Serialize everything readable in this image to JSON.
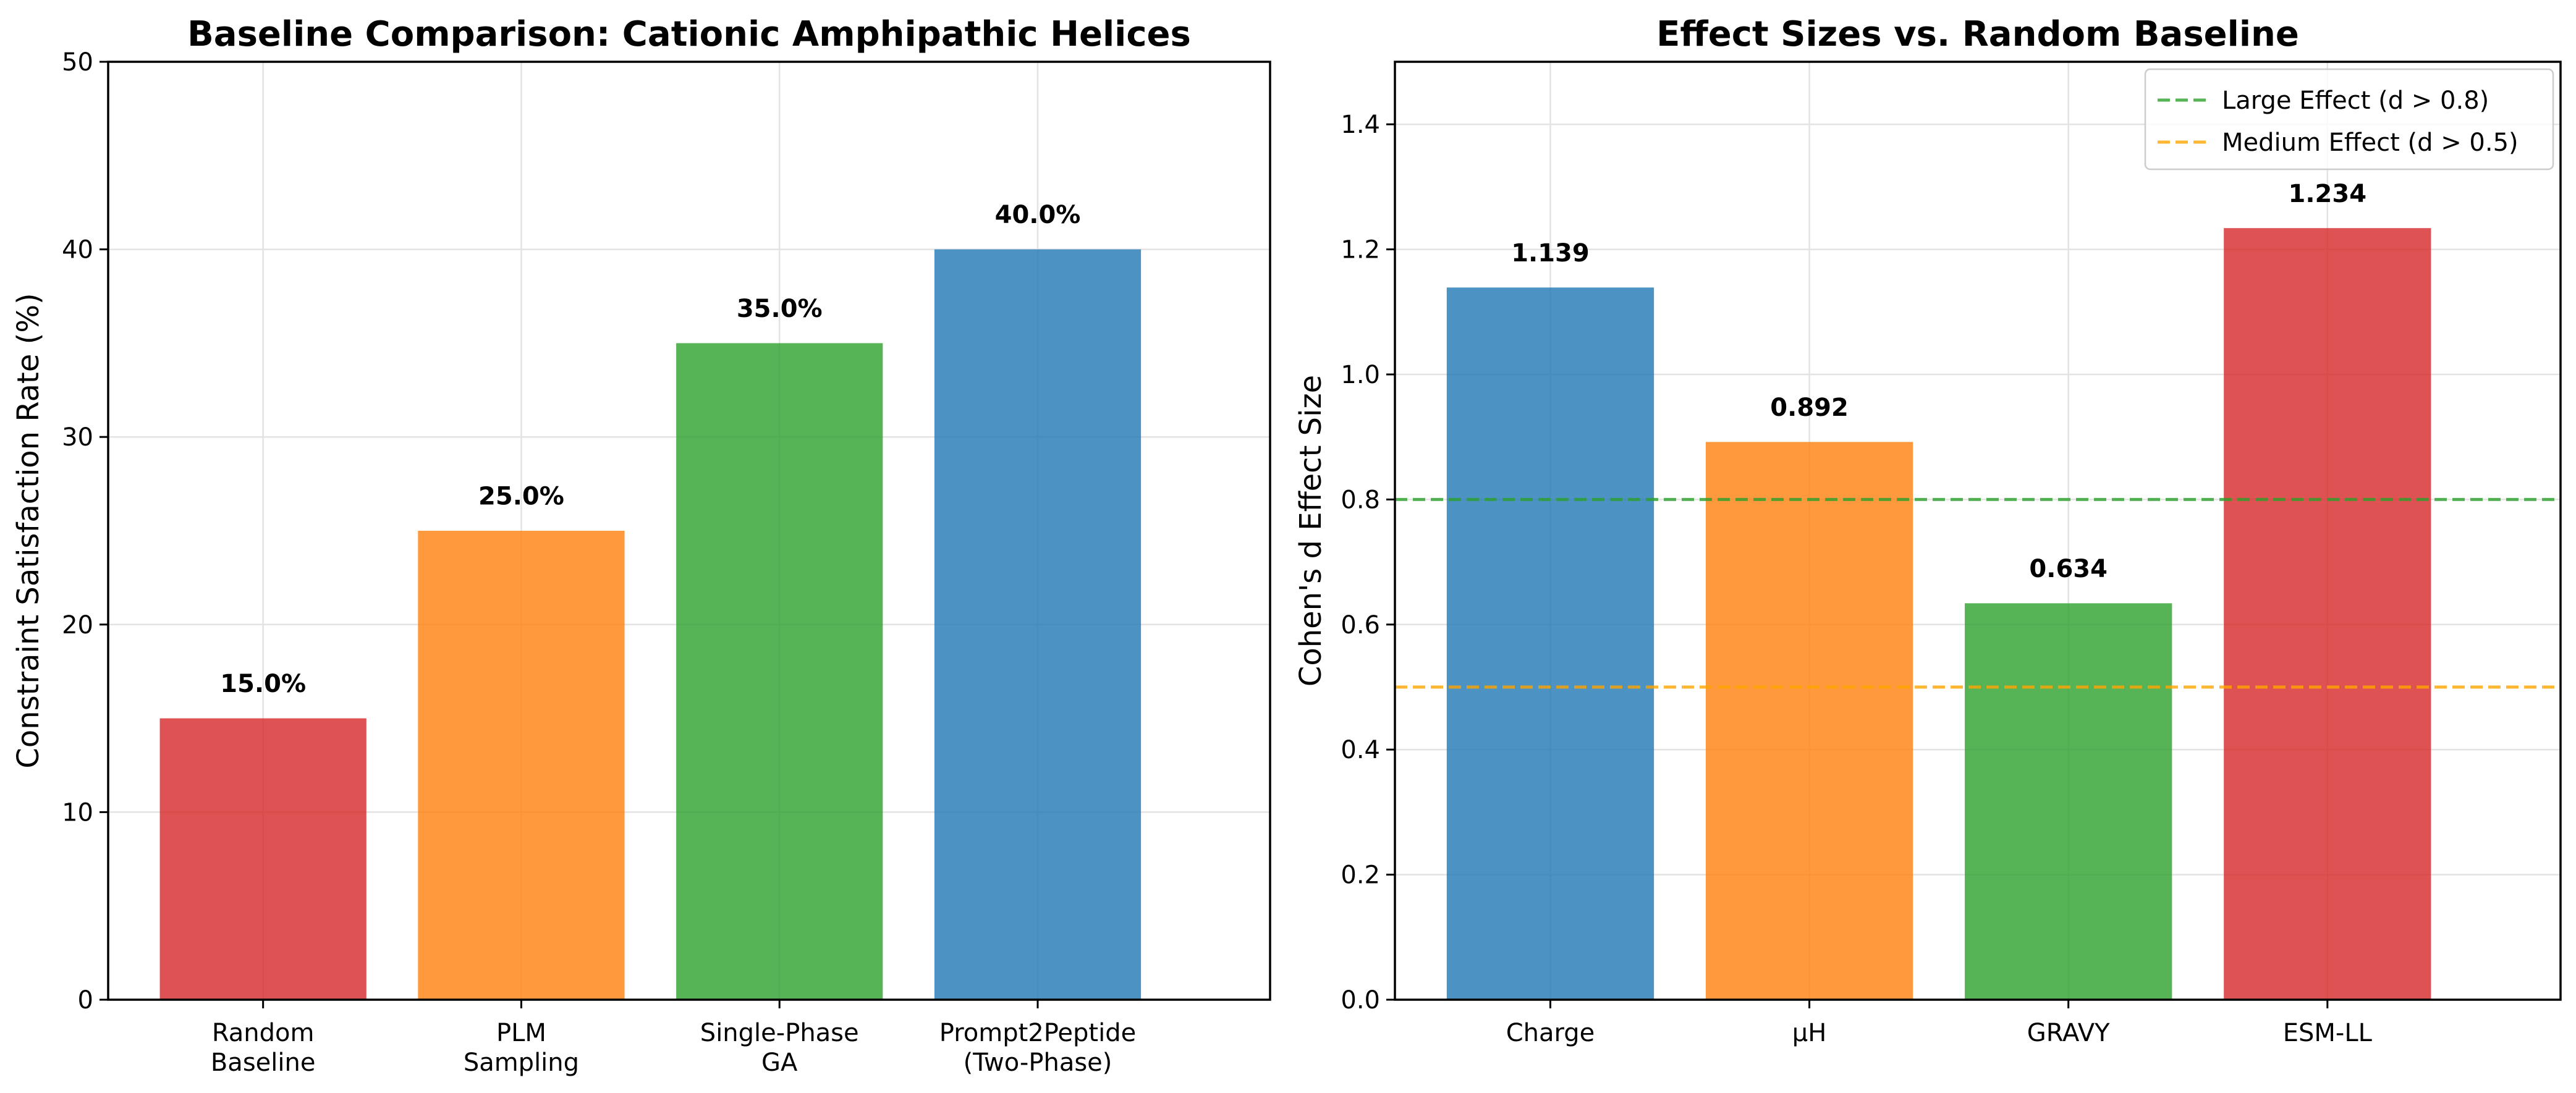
{
  "chart_data": [
    {
      "type": "bar",
      "title": "Baseline Comparison: Cationic Amphipathic Helices",
      "xlabel": "",
      "ylabel": "Constraint Satisfaction Rate (%)",
      "categories": [
        [
          "Random",
          "Baseline"
        ],
        [
          "PLM",
          "Sampling"
        ],
        [
          "Single-Phase",
          "GA"
        ],
        [
          "Prompt2Peptide",
          "(Two-Phase)"
        ]
      ],
      "values": [
        15.0,
        25.0,
        35.0,
        40.0
      ],
      "value_labels": [
        "15.0%",
        "25.0%",
        "35.0%",
        "40.0%"
      ],
      "colors": [
        "#d62728",
        "#ff7f0e",
        "#2ca02c",
        "#1f77b4"
      ],
      "ylim": [
        0,
        50
      ],
      "yticks": [
        0,
        10,
        20,
        30,
        40,
        50
      ],
      "ytick_labels": [
        "0",
        "10",
        "20",
        "30",
        "40",
        "50"
      ],
      "grid": true
    },
    {
      "type": "bar",
      "title": "Effect Sizes vs. Random Baseline",
      "xlabel": "",
      "ylabel": "Cohen's d Effect Size",
      "categories": [
        [
          "Charge"
        ],
        [
          "μH"
        ],
        [
          "GRAVY"
        ],
        [
          "ESM-LL"
        ]
      ],
      "values": [
        1.139,
        0.892,
        0.634,
        1.234
      ],
      "value_labels": [
        "1.139",
        "0.892",
        "0.634",
        "1.234"
      ],
      "colors": [
        "#1f77b4",
        "#ff7f0e",
        "#2ca02c",
        "#d62728"
      ],
      "ylim": [
        0,
        1.5
      ],
      "yticks": [
        0,
        0.2,
        0.4,
        0.6,
        0.8,
        1.0,
        1.2,
        1.4
      ],
      "ytick_labels": [
        "0.0",
        "0.2",
        "0.4",
        "0.6",
        "0.8",
        "1.0",
        "1.2",
        "1.4"
      ],
      "grid": true,
      "reference_lines": [
        {
          "value": 0.8,
          "label": "Large Effect (d > 0.8)",
          "color": "#2ca02c"
        },
        {
          "value": 0.5,
          "label": "Medium Effect (d > 0.5)",
          "color": "#ffa500"
        }
      ],
      "legend_position": "top-right"
    }
  ]
}
